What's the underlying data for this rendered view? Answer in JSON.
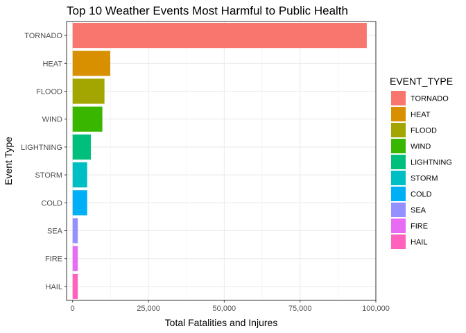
{
  "chart_data": {
    "type": "bar",
    "orientation": "horizontal",
    "title": "Top 10 Weather Events Most Harmful to Public Health",
    "xlabel": "Total Fatalities and Injures",
    "ylabel": "Event Type",
    "categories": [
      "TORNADO",
      "HEAT",
      "FLOOD",
      "WIND",
      "LIGHTNING",
      "STORM",
      "COLD",
      "SEA",
      "FIRE",
      "HAIL"
    ],
    "values": [
      97000,
      12400,
      10500,
      9800,
      6000,
      4800,
      4800,
      1700,
      1700,
      1700
    ],
    "colors": [
      "#F8766D",
      "#D89000",
      "#A3A500",
      "#39B600",
      "#00BF7D",
      "#00BFC4",
      "#00B0F6",
      "#9590FF",
      "#E76BF3",
      "#FF62BC"
    ],
    "xlim": [
      -2000,
      100000
    ],
    "xticks": [
      0,
      25000,
      50000,
      75000,
      100000
    ],
    "xtick_labels": [
      "0",
      "25,000",
      "50,000",
      "75,000",
      "100,000"
    ],
    "grid": true,
    "legend": {
      "title": "EVENT_TYPE",
      "placement": "right",
      "entries": [
        "TORNADO",
        "HEAT",
        "FLOOD",
        "WIND",
        "LIGHTNING",
        "STORM",
        "COLD",
        "SEA",
        "FIRE",
        "HAIL"
      ]
    }
  }
}
